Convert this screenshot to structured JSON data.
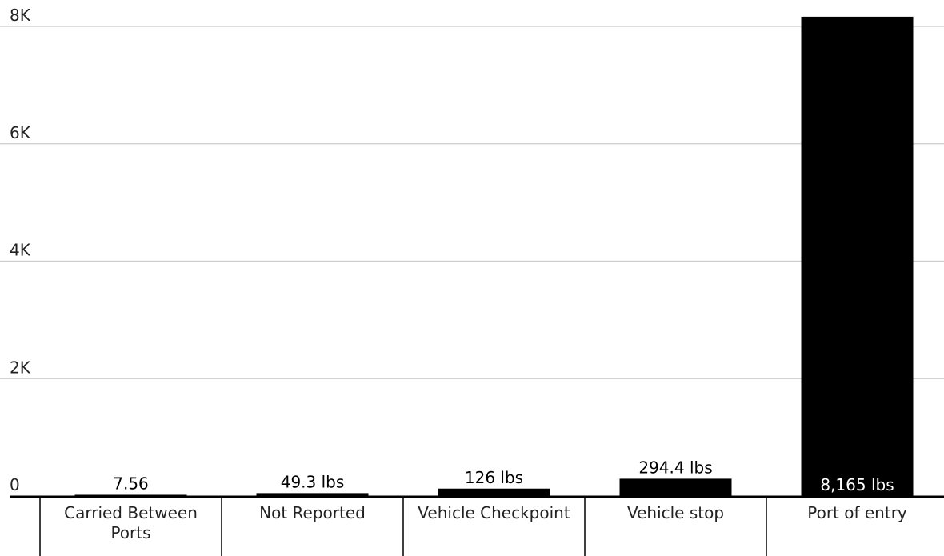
{
  "chart_data": {
    "type": "bar",
    "categories": [
      "Carried Between Ports",
      "Not Reported",
      "Vehicle Checkpoint",
      "Vehicle stop",
      "Port of entry"
    ],
    "values": [
      7.56,
      49.3,
      126,
      294.4,
      8165
    ],
    "data_labels": [
      "7.56",
      "49.3 lbs",
      "126 lbs",
      "294.4 lbs",
      "8,165 lbs"
    ],
    "category_lines": [
      [
        "Carried Between",
        "Ports"
      ],
      [
        "Not Reported"
      ],
      [
        "Vehicle Checkpoint"
      ],
      [
        "Vehicle stop"
      ],
      [
        "Port of entry"
      ]
    ],
    "y_ticks": [
      {
        "value": 0,
        "label": "0"
      },
      {
        "value": 2000,
        "label": "2K"
      },
      {
        "value": 4000,
        "label": "4K"
      },
      {
        "value": 6000,
        "label": "6K"
      },
      {
        "value": 8000,
        "label": "8K"
      }
    ],
    "ylim": [
      0,
      8000
    ],
    "grid": true,
    "colors": {
      "bar": "#000000",
      "grid": "#cccccc",
      "axis": "#000000",
      "label_inside": "#ffffff",
      "label_outside": "#000000"
    }
  }
}
